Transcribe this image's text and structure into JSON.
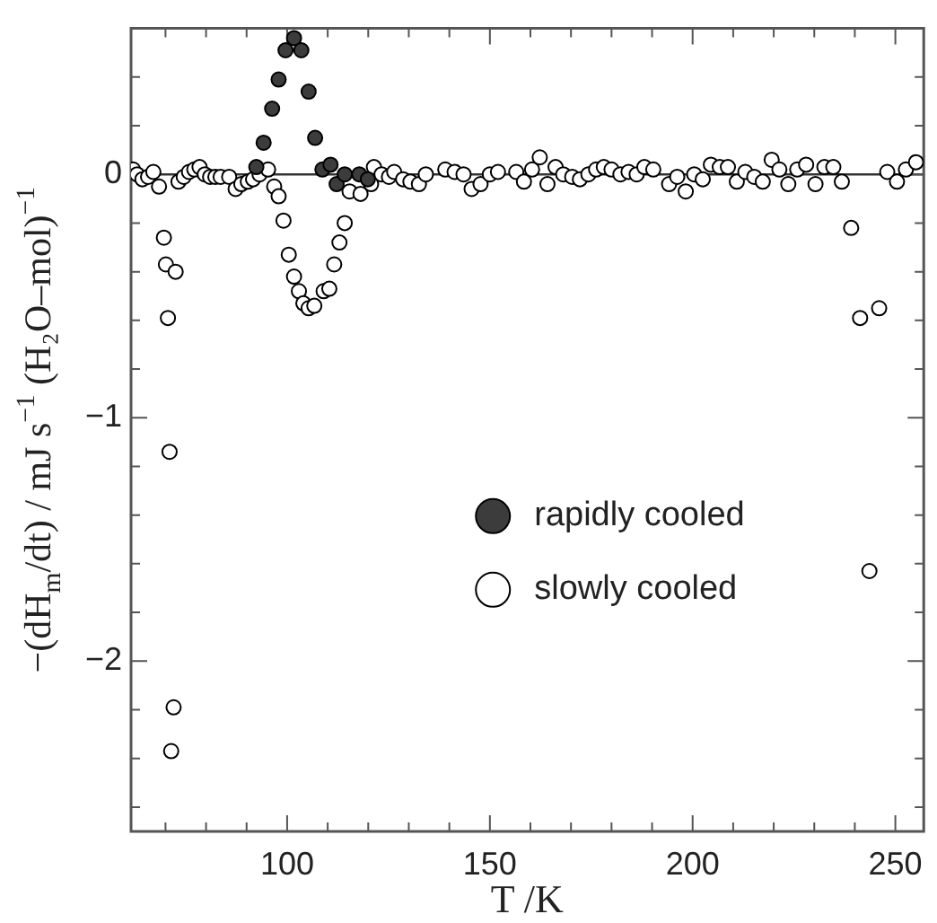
{
  "chart_data": {
    "type": "scatter",
    "xlabel": "T /K",
    "ylabel": "−(dH$_{m}$/dt) / mJ s$^{−1}$ (H₂O–mol)$^{−1}$",
    "xlim": [
      61.5,
      257
    ],
    "ylim": [
      -2.7,
      0.6
    ],
    "xticks": [
      {
        "value": 70,
        "label": null
      },
      {
        "value": 80,
        "label": null
      },
      {
        "value": 90,
        "label": null
      },
      100,
      {
        "value": 110,
        "label": null
      },
      {
        "value": 120,
        "label": null
      },
      {
        "value": 130,
        "label": null
      },
      {
        "value": 140,
        "label": null
      },
      150,
      {
        "value": 160,
        "label": null
      },
      {
        "value": 170,
        "label": null
      },
      {
        "value": 180,
        "label": null
      },
      {
        "value": 190,
        "label": null
      },
      200,
      {
        "value": 210,
        "label": null
      },
      {
        "value": 220,
        "label": null
      },
      {
        "value": 230,
        "label": null
      },
      {
        "value": 240,
        "label": null
      },
      250
    ],
    "yticks": [
      {
        "value": -2.6,
        "label": null
      },
      {
        "value": -2.4,
        "label": null
      },
      {
        "value": -2.2,
        "label": null
      },
      {
        "value": -2,
        "label": "−2"
      },
      {
        "value": -1.8,
        "label": null
      },
      {
        "value": -1.6,
        "label": null
      },
      {
        "value": -1.4,
        "label": null
      },
      {
        "value": -1.2,
        "label": null
      },
      {
        "value": -1,
        "label": "−1"
      },
      {
        "value": -0.8,
        "label": null
      },
      {
        "value": -0.6,
        "label": null
      },
      {
        "value": -0.4,
        "label": null
      },
      {
        "value": -0.2,
        "label": null
      },
      0,
      {
        "value": 0.2,
        "label": null
      },
      {
        "value": 0.4,
        "label": null
      }
    ],
    "ref_lines": [
      {
        "axis": "y",
        "value": 0,
        "color": "#333333"
      }
    ],
    "legend": "center right",
    "marker": "circle",
    "series": [
      {
        "name": "rapidly cooled",
        "color": "#3c3c3c",
        "x": [
          92.4,
          94.2,
          96.3,
          97.9,
          99.6,
          101.7,
          103.5,
          105.3,
          106.9,
          108.7,
          110.7,
          112.2,
          114.2,
          117.8,
          119.9
        ],
        "values": [
          0.03,
          0.13,
          0.27,
          0.39,
          0.51,
          0.56,
          0.51,
          0.34,
          0.15,
          0.02,
          0.04,
          -0.04,
          0,
          0,
          -0.02
        ]
      },
      {
        "name": "slowly cooled",
        "color": "#ffffff",
        "x": [
          62,
          63,
          64.3,
          65.7,
          67,
          68.4,
          69.6,
          70.1,
          72.5,
          70.6,
          71,
          72,
          71.4,
          73.2,
          74.5,
          75.8,
          77.1,
          78.4,
          79.7,
          81,
          82.3,
          83.6,
          85.7,
          87.3,
          88.7,
          90.3,
          91.6,
          93.2,
          95.3,
          96.8,
          97.9,
          99.1,
          100.4,
          101.7,
          102.9,
          104,
          105.3,
          106.7,
          109,
          110.4,
          111.6,
          112.9,
          114.2,
          115.4,
          118.1,
          120.7,
          121.4,
          123.3,
          125.1,
          126.4,
          128.6,
          130.4,
          132.5,
          134.2,
          139,
          141.3,
          143.5,
          145.5,
          147.7,
          150,
          152,
          156.5,
          158.4,
          160.4,
          162.3,
          164.2,
          166.2,
          168.1,
          170.3,
          172.2,
          174.3,
          176.2,
          178.1,
          180,
          182.2,
          184.2,
          186.2,
          188.1,
          190.3,
          194.2,
          196.2,
          198.3,
          200.4,
          202.5,
          204.5,
          206.7,
          208.7,
          210.9,
          213,
          215.2,
          217.3,
          219.5,
          221.4,
          223.6,
          225.8,
          228,
          230.3,
          232.5,
          234.7,
          236.8,
          239.1,
          241.3,
          243.6,
          246,
          248,
          250.4,
          252.6,
          255.1
        ],
        "values": [
          0.02,
          0,
          -0.02,
          -0.01,
          0.01,
          -0.05,
          -0.26,
          -0.37,
          -0.4,
          -0.59,
          -1.14,
          -2.19,
          -2.37,
          -0.03,
          -0.01,
          0.01,
          0.02,
          0.03,
          0,
          -0.01,
          -0.01,
          -0.01,
          -0.01,
          -0.06,
          -0.04,
          -0.03,
          -0.02,
          0,
          0.02,
          -0.05,
          -0.09,
          -0.19,
          -0.33,
          -0.42,
          -0.48,
          -0.53,
          -0.55,
          -0.54,
          -0.48,
          -0.47,
          -0.37,
          -0.28,
          -0.2,
          -0.07,
          -0.08,
          -0.04,
          0.03,
          0,
          -0.01,
          0.01,
          -0.02,
          -0.03,
          -0.04,
          0,
          0.02,
          0.01,
          0,
          -0.06,
          -0.04,
          0,
          0.01,
          0.01,
          -0.03,
          0.02,
          0.07,
          -0.04,
          0.03,
          0,
          -0.01,
          -0.02,
          0,
          0.02,
          0.03,
          0.02,
          0,
          0.01,
          0,
          0.03,
          0.02,
          -0.04,
          -0.01,
          -0.07,
          0,
          -0.02,
          0.04,
          0.03,
          0.03,
          -0.03,
          0.01,
          -0.01,
          -0.03,
          0.06,
          0.02,
          -0.04,
          0.02,
          0.04,
          -0.04,
          0.03,
          0.03,
          -0.03,
          -0.22,
          -0.59,
          -1.63,
          -0.55,
          0.01,
          -0.03,
          0.02,
          0.05
        ]
      }
    ]
  }
}
